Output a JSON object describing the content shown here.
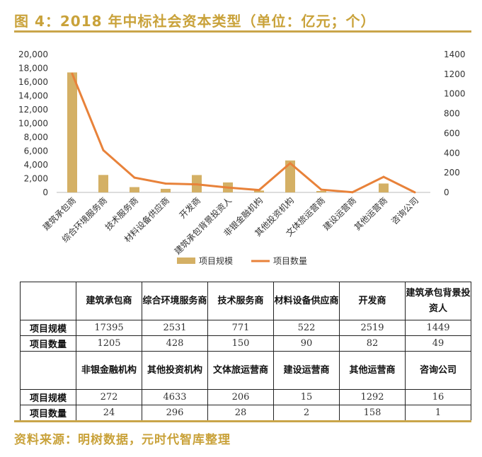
{
  "title": "图 4：2018 年中标社会资本类型（单位：亿元；个）",
  "source": "资料来源：明树数据，元时代智库整理",
  "colors": {
    "bar": "#d4b065",
    "line": "#e8823a",
    "accent": "#c9a23a"
  },
  "chart_data": {
    "type": "bar+line",
    "categories": [
      "建筑承包商",
      "综合环境服务商",
      "技术服务商",
      "材料设备供应商",
      "开发商",
      "建筑承包背景投资人",
      "非银金融机构",
      "其他投资机构",
      "文体旅运营商",
      "建设运营商",
      "其他运营商",
      "咨询公司"
    ],
    "series": [
      {
        "name": "项目规模",
        "type": "bar",
        "axis": "left",
        "values": [
          17395,
          2531,
          771,
          522,
          2519,
          1449,
          272,
          4633,
          206,
          15,
          1292,
          16
        ]
      },
      {
        "name": "项目数量",
        "type": "line",
        "axis": "right",
        "values": [
          1205,
          428,
          150,
          90,
          82,
          49,
          24,
          296,
          28,
          2,
          158,
          1
        ]
      }
    ],
    "left_axis": {
      "ylim": [
        0,
        20000
      ],
      "ticks": [
        "0",
        "2,000",
        "4,000",
        "6,000",
        "8,000",
        "10,000",
        "12,000",
        "14,000",
        "16,000",
        "18,000",
        "20,000"
      ]
    },
    "right_axis": {
      "ylim": [
        0,
        1400
      ],
      "ticks": [
        "0",
        "200",
        "400",
        "600",
        "800",
        "1000",
        "1200",
        "1400"
      ]
    },
    "grid": false,
    "legend": "bottom"
  },
  "table": {
    "row_labels": [
      "项目规模",
      "项目数量"
    ],
    "blocks": [
      {
        "headers": [
          "建筑承包商",
          "综合环境服务商",
          "技术服务商",
          "材料设备供应商",
          "开发商",
          "建筑承包背景投资人"
        ],
        "scale": [
          "17395",
          "2531",
          "771",
          "522",
          "2519",
          "1449"
        ],
        "count": [
          "1205",
          "428",
          "150",
          "90",
          "82",
          "49"
        ]
      },
      {
        "headers": [
          "非银金融机构",
          "其他投资机构",
          "文体旅运营商",
          "建设运营商",
          "其他运营商",
          "咨询公司"
        ],
        "scale": [
          "272",
          "4633",
          "206",
          "15",
          "1292",
          "16"
        ],
        "count": [
          "24",
          "296",
          "28",
          "2",
          "158",
          "1"
        ]
      }
    ]
  }
}
